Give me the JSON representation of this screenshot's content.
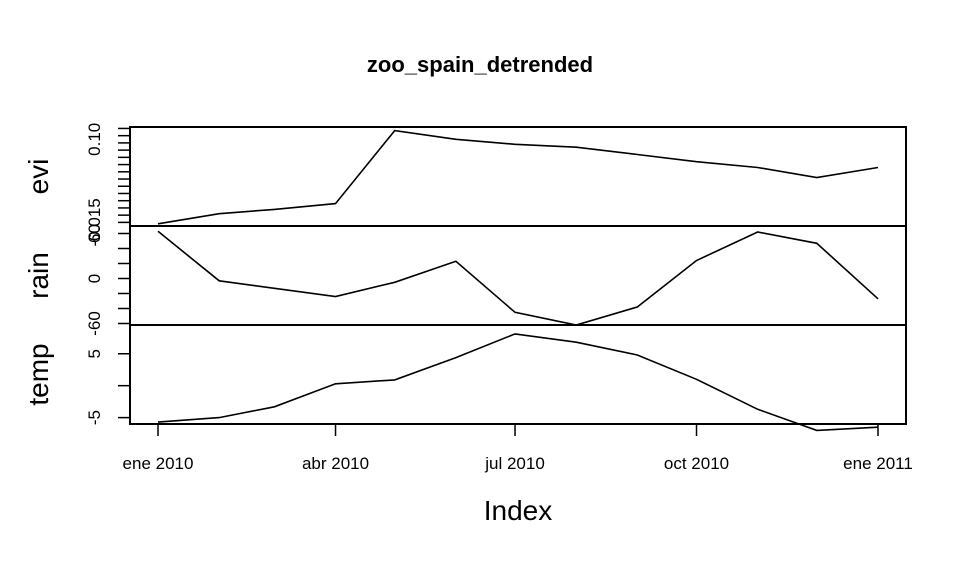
{
  "chart_data": {
    "type": "line",
    "title": "zoo_spain_detrended",
    "xlabel": "Index",
    "x": [
      "2010-01-01",
      "2010-02-01",
      "2010-03-01",
      "2010-04-01",
      "2010-05-01",
      "2010-06-01",
      "2010-07-01",
      "2010-08-01",
      "2010-09-01",
      "2010-10-01",
      "2010-11-01",
      "2010-12-01",
      "2011-01-01"
    ],
    "x_ticks": [
      {
        "date": "2010-01-01",
        "label": "ene 2010"
      },
      {
        "date": "2010-04-01",
        "label": "abr 2010"
      },
      {
        "date": "2010-07-01",
        "label": "jul 2010"
      },
      {
        "date": "2010-10-01",
        "label": "oct 2010"
      },
      {
        "date": "2011-01-01",
        "label": "ene 2011"
      }
    ],
    "panels": [
      {
        "name": "evi",
        "ylabel": "evi",
        "ylim": [
          -0.02,
          0.117
        ],
        "ticks": [
          -0.015,
          -0.005,
          0.005,
          0.015,
          0.025,
          0.035,
          0.045,
          0.055,
          0.065,
          0.075,
          0.085,
          0.095,
          0.105,
          0.115
        ],
        "tick_labels": [
          {
            "value": -0.015,
            "label": "-0.015"
          },
          {
            "value": 0.1,
            "label": "0.10"
          }
        ],
        "values": [
          -0.017,
          -0.003,
          0.003,
          0.011,
          0.112,
          0.1,
          0.093,
          0.089,
          0.079,
          0.069,
          0.061,
          0.047,
          0.061
        ]
      },
      {
        "name": "rain",
        "ylabel": "rain",
        "ylim": [
          -62,
          70
        ],
        "ticks": [
          -60,
          -40,
          -20,
          0,
          20,
          40,
          60
        ],
        "tick_labels": [
          {
            "value": -60,
            "label": "-60"
          },
          {
            "value": 0,
            "label": "0"
          },
          {
            "value": 60,
            "label": "60"
          }
        ],
        "values": [
          63,
          -3,
          -13,
          -24,
          -5,
          23,
          -45,
          -62,
          -38,
          24,
          62,
          47,
          -27
        ]
      },
      {
        "name": "temp",
        "ylabel": "temp",
        "ylim": [
          -6,
          9.5
        ],
        "ticks": [
          -5,
          0,
          5
        ],
        "tick_labels": [
          {
            "value": -5,
            "label": "-5"
          },
          {
            "value": 5,
            "label": "5"
          }
        ],
        "values": [
          -5.7,
          -5.0,
          -3.3,
          0.3,
          0.9,
          4.4,
          8.1,
          6.8,
          4.8,
          1.0,
          -3.7,
          -7.0,
          -6.5
        ]
      }
    ]
  }
}
